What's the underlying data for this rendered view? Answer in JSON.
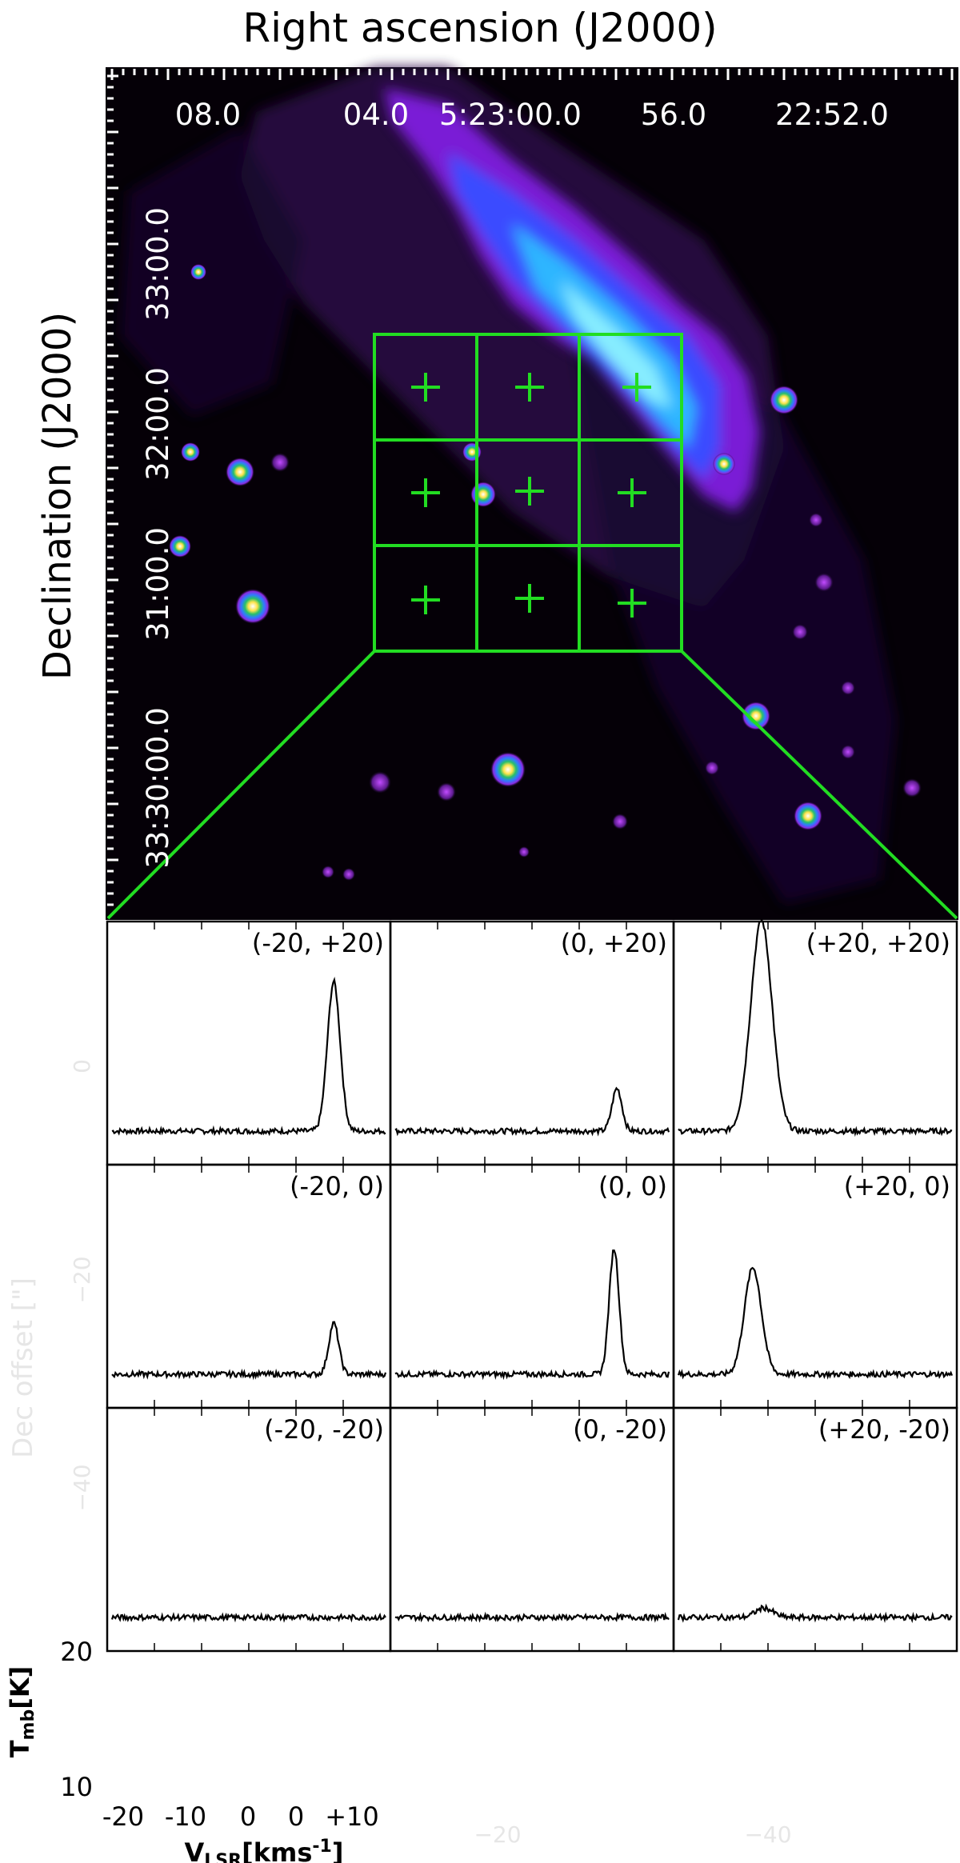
{
  "title": "Right ascension (J2000)",
  "ra_ticks": [
    "08.0",
    "04.0",
    "5:23:00.0",
    "56.0",
    "22:52.0"
  ],
  "ylabel": "Declination  (J2000)",
  "dec_ticks": [
    "33:00.0",
    "32:00.0",
    "31:00.0",
    "33:30:00.0"
  ],
  "panels": [
    {
      "label": "(-20, +20)"
    },
    {
      "label": "(0, +20)"
    },
    {
      "label": "(+20, +20)"
    },
    {
      "label": "(-20, 0)"
    },
    {
      "label": "(0, 0)"
    },
    {
      "label": "(+20, 0)"
    },
    {
      "label": "(-20, -20)"
    },
    {
      "label": "(0, -20)"
    },
    {
      "label": "(+20, -20)"
    }
  ],
  "tmb_label": "T",
  "tmb_sub": "mb",
  "tmb_unit": "[K]",
  "y_ticks": [
    "20",
    "10"
  ],
  "vlsr_label": "V",
  "vlsr_sub": "LSR",
  "vlsr_unit": "[kms",
  "vlsr_exp": "-1",
  "vlsr_close": "]",
  "x_ticks": [
    "-20",
    "-10",
    "0",
    "0",
    "+10"
  ],
  "faint": {
    "dec_offset": "Dec offset [\"]",
    "ticks": [
      "0",
      "−20",
      "−40",
      "−20",
      "−40"
    ]
  },
  "colors": {
    "grid": "#22dd22",
    "cloud": "#7a1fd6",
    "hot": "#2fb6ff",
    "spectrum": "#000000"
  },
  "spectra": [
    {
      "panel": "(-20, +20)",
      "peak_K": 12.6,
      "peak_x_frac": 0.8,
      "width_frac": 0.045
    },
    {
      "panel": "(0, +20)",
      "peak_K": 3.6,
      "peak_x_frac": 0.8,
      "width_frac": 0.035
    },
    {
      "panel": "(+20, +20)",
      "peak_K": 17.8,
      "peak_x_frac": 0.31,
      "width_frac": 0.075
    },
    {
      "panel": "(-20, 0)",
      "peak_K": 4.3,
      "peak_x_frac": 0.8,
      "width_frac": 0.035
    },
    {
      "panel": "(0, 0)",
      "peak_K": 10.6,
      "peak_x_frac": 0.79,
      "width_frac": 0.035
    },
    {
      "panel": "(+20, 0)",
      "peak_K": 9.0,
      "peak_x_frac": 0.28,
      "width_frac": 0.06
    },
    {
      "panel": "(-20, -20)",
      "peak_K": 0.0,
      "peak_x_frac": 0.8,
      "width_frac": 0.04
    },
    {
      "panel": "(0, -20)",
      "peak_K": 0.0,
      "peak_x_frac": 0.8,
      "width_frac": 0.04
    },
    {
      "panel": "(+20, -20)",
      "peak_K": 0.8,
      "peak_x_frac": 0.32,
      "width_frac": 0.06
    }
  ]
}
